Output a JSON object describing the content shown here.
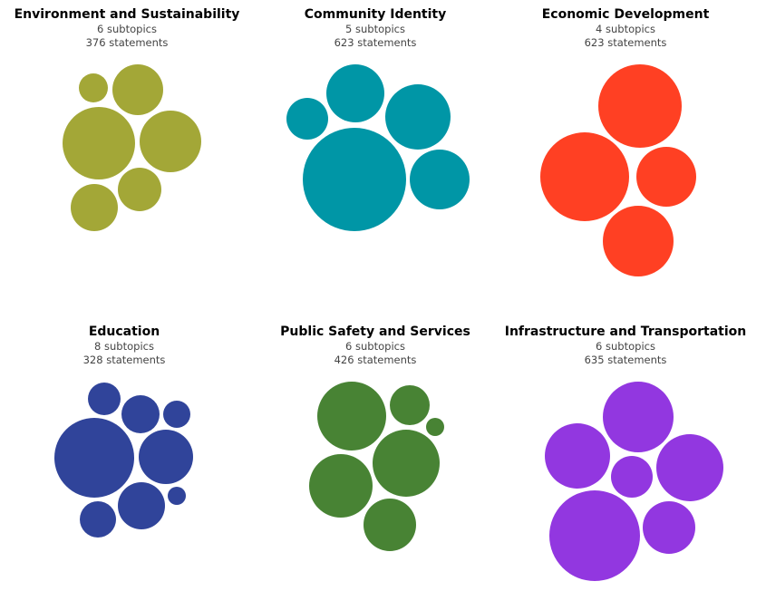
{
  "topics": [
    {
      "title": "Environment and Sustainability",
      "subtopics": "6 subtopics",
      "statements": "376 statements",
      "color": "#a3a737"
    },
    {
      "title": "Community Identity",
      "subtopics": "5 subtopics",
      "statements": "623 statements",
      "color": "#0096a6"
    },
    {
      "title": "Economic Development",
      "subtopics": "4 subtopics",
      "statements": "623 statements",
      "color": "#ff4023"
    },
    {
      "title": "Education",
      "subtopics": "8 subtopics",
      "statements": "328 statements",
      "color": "#30449a"
    },
    {
      "title": "Public Safety and Services",
      "subtopics": "6 subtopics",
      "statements": "426 statements",
      "color": "#488334"
    },
    {
      "title": "Infrastructure and Transportation",
      "subtopics": "6 subtopics",
      "statements": "635 statements",
      "color": "#9237e0"
    }
  ]
}
